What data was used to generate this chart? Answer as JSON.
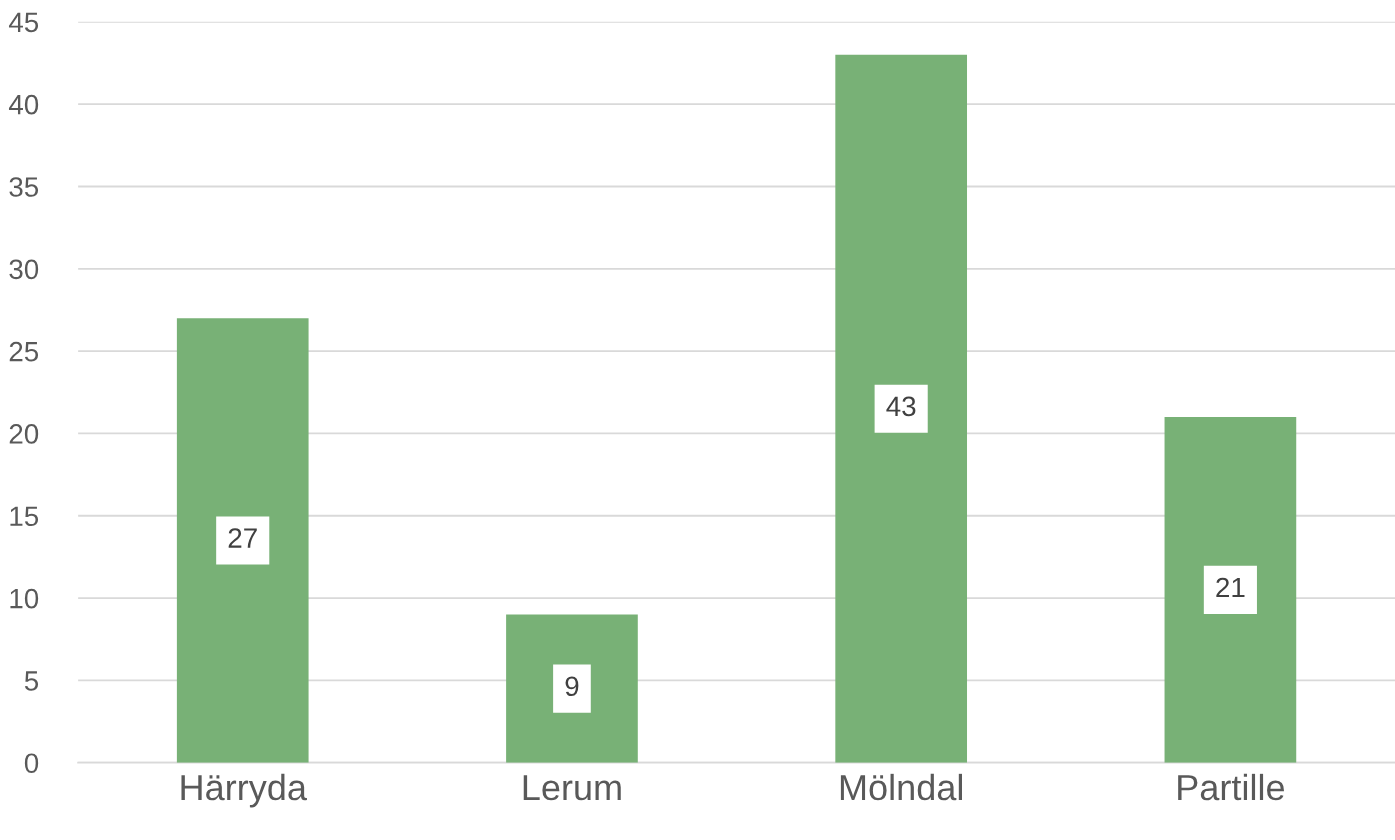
{
  "chart_data": {
    "type": "bar",
    "categories": [
      "Härryda",
      "Lerum",
      "Mölndal",
      "Partille"
    ],
    "values": [
      27,
      9,
      43,
      21
    ],
    "color": "#78b176",
    "ylim": [
      0,
      45
    ],
    "yticks": [
      0,
      5,
      10,
      15,
      20,
      25,
      30,
      35,
      40,
      45
    ],
    "grid": "y",
    "data_labels": true
  }
}
